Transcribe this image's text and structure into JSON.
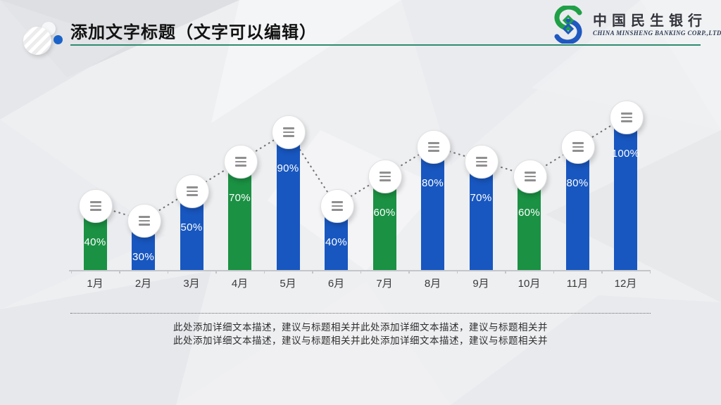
{
  "slide": {
    "title": "添加文字标题（文字可以编辑）",
    "accent_underline_color": "#2e8c6e"
  },
  "logo": {
    "name_cn": "中国民生银行",
    "name_en": "CHINA MINSHENG BANKING CORP.,LTD.",
    "mark_green": "#1fa046",
    "mark_blue": "#1f58c0"
  },
  "chart_data": {
    "type": "bar",
    "title": "",
    "xlabel": "",
    "ylabel": "",
    "categories": [
      "1月",
      "2月",
      "3月",
      "4月",
      "5月",
      "6月",
      "7月",
      "8月",
      "9月",
      "10月",
      "11月",
      "12月"
    ],
    "values": [
      40,
      30,
      50,
      70,
      90,
      40,
      60,
      80,
      70,
      60,
      80,
      100
    ],
    "value_labels": [
      "40%",
      "30%",
      "50%",
      "70%",
      "90%",
      "40%",
      "60%",
      "80%",
      "70%",
      "60%",
      "80%",
      "100%"
    ],
    "bar_colors": [
      "#1a9143",
      "#1857c0",
      "#1857c0",
      "#1a9143",
      "#1857c0",
      "#1857c0",
      "#1a9143",
      "#1857c0",
      "#1857c0",
      "#1a9143",
      "#1857c0",
      "#1857c0"
    ],
    "ylim": [
      0,
      100
    ],
    "grid": false,
    "legend": false,
    "value_label_color": "#ffffff",
    "marker": "white-circle-with-menu-glyph",
    "connector": "dotted-gray-line",
    "palette": {
      "green": "#1a9143",
      "blue": "#1857c0"
    }
  },
  "footer": {
    "line1": "此处添加详细文本描述，建议与标题相关并此处添加详细文本描述，建议与标题相关并",
    "line2": "此处添加详细文本描述，建议与标题相关并此处添加详细文本描述，建议与标题相关并"
  }
}
